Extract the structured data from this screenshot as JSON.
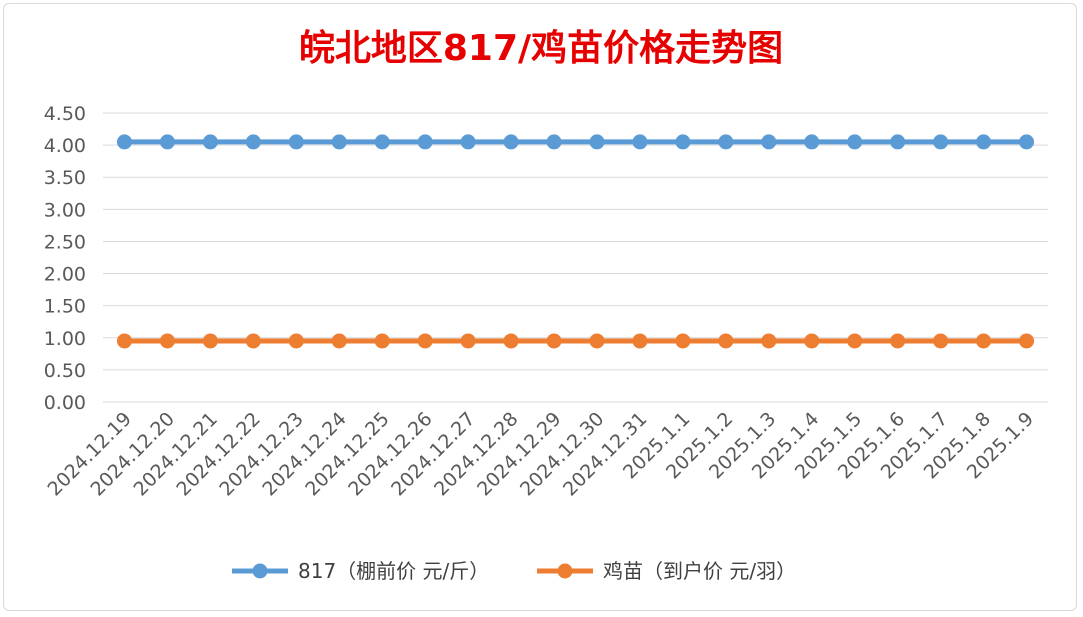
{
  "chart_data": {
    "type": "line",
    "title": "皖北地区817/鸡苗价格走势图",
    "categories": [
      "2024.12.19",
      "2024.12.20",
      "2024.12.21",
      "2024.12.22",
      "2024.12.23",
      "2024.12.24",
      "2024.12.25",
      "2024.12.26",
      "2024.12.27",
      "2024.12.28",
      "2024.12.29",
      "2024.12.30",
      "2024.12.31",
      "2025.1.1",
      "2025.1.2",
      "2025.1.3",
      "2025.1.4",
      "2025.1.5",
      "2025.1.6",
      "2025.1.7",
      "2025.1.8",
      "2025.1.9"
    ],
    "y_ticks": [
      "0.00",
      "0.50",
      "1.00",
      "1.50",
      "2.00",
      "2.50",
      "3.00",
      "3.50",
      "4.00",
      "4.50"
    ],
    "ylim": [
      0,
      4.5
    ],
    "grid": true,
    "legend_position": "bottom",
    "series": [
      {
        "name": "817（棚前价 元/斤）",
        "color": "#5b9bd5",
        "values": [
          4.05,
          4.05,
          4.05,
          4.05,
          4.05,
          4.05,
          4.05,
          4.05,
          4.05,
          4.05,
          4.05,
          4.05,
          4.05,
          4.05,
          4.05,
          4.05,
          4.05,
          4.05,
          4.05,
          4.05,
          4.05,
          4.05
        ]
      },
      {
        "name": "鸡苗（到户价 元/羽）",
        "color": "#ed7d31",
        "values": [
          0.95,
          0.95,
          0.95,
          0.95,
          0.95,
          0.95,
          0.95,
          0.95,
          0.95,
          0.95,
          0.95,
          0.95,
          0.95,
          0.95,
          0.95,
          0.95,
          0.95,
          0.95,
          0.95,
          0.95,
          0.95,
          0.95
        ]
      }
    ]
  },
  "title_color": "#e60000"
}
